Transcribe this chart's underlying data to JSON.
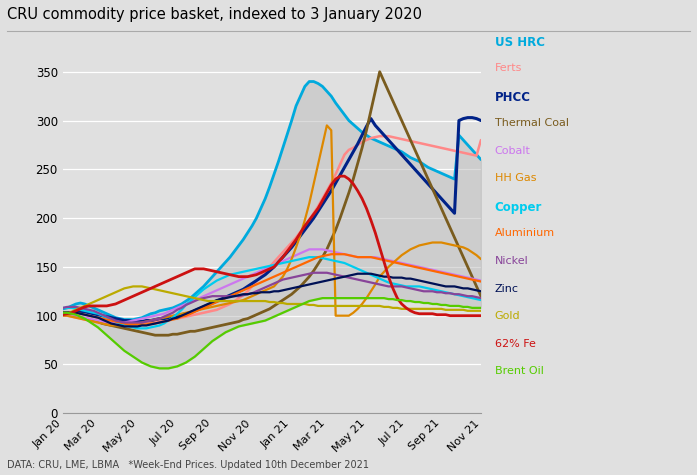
{
  "title": "CRU commodity price basket, indexed to 3 January 2020",
  "footnote": "DATA: CRU, LME, LBMA   *Week-End Prices. Updated 10th December 2021",
  "bg_color": "#e0e0e0",
  "ylim": [
    0,
    370
  ],
  "yticks": [
    0,
    50,
    100,
    150,
    200,
    250,
    300,
    350
  ],
  "x_labels": [
    "Jan 20",
    "Mar 20",
    "May 20",
    "Jul 20",
    "Sep 20",
    "Nov 20",
    "Jan 21",
    "Mar 21",
    "May 21",
    "Jul 21",
    "Sep 21",
    "Nov 21"
  ],
  "x_label_indices": [
    0,
    8,
    17,
    26,
    34,
    43,
    52,
    60,
    69,
    78,
    86,
    95
  ],
  "bold_entries": [
    "US HRC",
    "PHCC",
    "Copper"
  ],
  "series": {
    "US HRC": {
      "color": "#00aadd",
      "lw": 2.0,
      "data": [
        107,
        108,
        110,
        112,
        113,
        112,
        110,
        108,
        106,
        104,
        102,
        100,
        98,
        97,
        96,
        96,
        96,
        97,
        98,
        100,
        102,
        103,
        105,
        106,
        107,
        108,
        110,
        112,
        115,
        118,
        122,
        126,
        130,
        135,
        140,
        145,
        150,
        155,
        160,
        166,
        172,
        178,
        185,
        192,
        200,
        210,
        220,
        232,
        245,
        258,
        272,
        286,
        300,
        315,
        325,
        335,
        340,
        340,
        338,
        335,
        330,
        325,
        318,
        312,
        306,
        300,
        296,
        292,
        288,
        285,
        282,
        280,
        278,
        276,
        274,
        272,
        270,
        268,
        265,
        262,
        260,
        258,
        255,
        252,
        250,
        248,
        246,
        244,
        242,
        240,
        285,
        280,
        275,
        270,
        265,
        260
      ]
    },
    "Ferts": {
      "color": "#ff8888",
      "lw": 1.8,
      "data": [
        100,
        100,
        99,
        98,
        97,
        96,
        95,
        94,
        93,
        92,
        91,
        90,
        90,
        90,
        90,
        91,
        92,
        92,
        93,
        93,
        94,
        94,
        95,
        95,
        96,
        97,
        97,
        98,
        99,
        100,
        101,
        102,
        103,
        104,
        105,
        106,
        108,
        110,
        112,
        115,
        118,
        121,
        125,
        130,
        135,
        140,
        145,
        150,
        155,
        160,
        165,
        170,
        175,
        180,
        186,
        192,
        198,
        205,
        212,
        220,
        228,
        236,
        245,
        255,
        265,
        270,
        272,
        275,
        278,
        280,
        282,
        283,
        284,
        284,
        284,
        283,
        282,
        281,
        280,
        279,
        278,
        277,
        276,
        275,
        274,
        273,
        272,
        271,
        270,
        269,
        268,
        267,
        266,
        265,
        264,
        280
      ]
    },
    "PHCC": {
      "color": "#002288",
      "lw": 2.2,
      "data": [
        103,
        103,
        103,
        104,
        104,
        104,
        103,
        102,
        101,
        100,
        99,
        98,
        97,
        96,
        95,
        95,
        94,
        94,
        94,
        95,
        95,
        96,
        97,
        97,
        98,
        99,
        100,
        101,
        102,
        103,
        105,
        107,
        109,
        111,
        113,
        115,
        117,
        119,
        121,
        123,
        125,
        127,
        130,
        133,
        136,
        139,
        142,
        146,
        150,
        155,
        160,
        165,
        170,
        176,
        182,
        188,
        194,
        200,
        207,
        214,
        221,
        228,
        236,
        244,
        252,
        260,
        268,
        276,
        285,
        294,
        302,
        295,
        290,
        285,
        280,
        275,
        270,
        265,
        260,
        255,
        250,
        245,
        240,
        235,
        230,
        225,
        220,
        215,
        210,
        205,
        300,
        302,
        303,
        303,
        302,
        300
      ]
    },
    "Thermal Coal": {
      "color": "#7a5c1e",
      "lw": 2.0,
      "data": [
        102,
        101,
        100,
        99,
        98,
        97,
        96,
        95,
        94,
        92,
        91,
        90,
        89,
        88,
        87,
        86,
        85,
        84,
        83,
        82,
        81,
        80,
        80,
        80,
        80,
        81,
        81,
        82,
        83,
        84,
        84,
        85,
        86,
        87,
        88,
        89,
        90,
        91,
        92,
        93,
        94,
        96,
        97,
        99,
        101,
        103,
        105,
        107,
        110,
        113,
        116,
        119,
        122,
        126,
        130,
        135,
        140,
        146,
        153,
        160,
        168,
        178,
        188,
        200,
        213,
        226,
        240,
        256,
        272,
        290,
        310,
        330,
        350,
        340,
        330,
        320,
        310,
        300,
        290,
        280,
        270,
        260,
        250,
        240,
        230,
        220,
        210,
        200,
        190,
        180,
        170,
        160,
        150,
        140,
        130,
        120
      ]
    },
    "Cobalt": {
      "color": "#cc77ee",
      "lw": 1.6,
      "data": [
        100,
        100,
        100,
        100,
        99,
        98,
        97,
        96,
        95,
        94,
        93,
        93,
        93,
        93,
        93,
        94,
        95,
        96,
        97,
        98,
        99,
        100,
        101,
        102,
        104,
        106,
        108,
        110,
        112,
        114,
        116,
        118,
        120,
        122,
        124,
        126,
        128,
        130,
        132,
        134,
        136,
        138,
        140,
        142,
        144,
        146,
        148,
        150,
        152,
        154,
        156,
        158,
        160,
        162,
        164,
        166,
        168,
        168,
        168,
        168,
        167,
        166,
        165,
        164,
        163,
        162,
        161,
        160,
        160,
        160,
        160,
        160,
        159,
        158,
        157,
        156,
        155,
        154,
        153,
        152,
        151,
        150,
        149,
        148,
        147,
        146,
        145,
        144,
        143,
        142,
        141,
        140,
        139,
        138,
        137,
        136
      ]
    },
    "HH Gas": {
      "color": "#dd8800",
      "lw": 1.6,
      "data": [
        100,
        100,
        99,
        98,
        97,
        96,
        95,
        94,
        93,
        92,
        91,
        90,
        90,
        90,
        90,
        91,
        92,
        92,
        93,
        94,
        95,
        96,
        97,
        98,
        99,
        100,
        101,
        102,
        103,
        104,
        105,
        106,
        107,
        108,
        109,
        110,
        111,
        112,
        113,
        114,
        115,
        116,
        118,
        120,
        122,
        124,
        126,
        128,
        130,
        135,
        140,
        148,
        158,
        170,
        183,
        198,
        215,
        235,
        255,
        275,
        295,
        290,
        100,
        100,
        100,
        100,
        103,
        107,
        112,
        118,
        125,
        132,
        140,
        145,
        150,
        154,
        158,
        162,
        165,
        168,
        170,
        172,
        173,
        174,
        175,
        175,
        175,
        174,
        173,
        172,
        171,
        170,
        168,
        165,
        162,
        158
      ]
    },
    "Copper": {
      "color": "#00ccee",
      "lw": 1.6,
      "data": [
        108,
        108,
        108,
        107,
        106,
        105,
        104,
        103,
        102,
        100,
        98,
        96,
        94,
        92,
        90,
        89,
        88,
        87,
        87,
        87,
        88,
        89,
        90,
        92,
        95,
        98,
        102,
        106,
        111,
        115,
        119,
        123,
        127,
        130,
        133,
        136,
        138,
        140,
        142,
        143,
        144,
        145,
        146,
        147,
        148,
        149,
        150,
        151,
        152,
        153,
        154,
        155,
        156,
        157,
        158,
        159,
        160,
        160,
        160,
        159,
        158,
        157,
        156,
        155,
        154,
        152,
        150,
        148,
        146,
        144,
        142,
        140,
        138,
        136,
        134,
        133,
        132,
        131,
        130,
        130,
        130,
        130,
        129,
        128,
        127,
        126,
        125,
        124,
        123,
        122,
        121,
        120,
        119,
        118,
        117,
        116
      ]
    },
    "Aluminium": {
      "color": "#ff6600",
      "lw": 1.6,
      "data": [
        103,
        103,
        103,
        103,
        102,
        101,
        100,
        99,
        98,
        97,
        96,
        95,
        94,
        93,
        92,
        91,
        91,
        91,
        91,
        91,
        92,
        92,
        93,
        94,
        95,
        96,
        97,
        99,
        100,
        102,
        104,
        106,
        108,
        110,
        112,
        114,
        116,
        118,
        120,
        122,
        124,
        126,
        128,
        130,
        132,
        134,
        136,
        138,
        140,
        142,
        144,
        146,
        148,
        150,
        152,
        154,
        156,
        158,
        160,
        161,
        162,
        163,
        163,
        163,
        163,
        162,
        161,
        160,
        160,
        160,
        160,
        159,
        158,
        157,
        156,
        155,
        154,
        153,
        152,
        151,
        150,
        149,
        148,
        147,
        146,
        145,
        144,
        143,
        142,
        141,
        140,
        139,
        138,
        137,
        136,
        135
      ]
    },
    "Nickel": {
      "color": "#884499",
      "lw": 1.6,
      "data": [
        108,
        109,
        109,
        109,
        108,
        107,
        106,
        105,
        103,
        101,
        99,
        97,
        95,
        94,
        93,
        93,
        93,
        93,
        93,
        94,
        95,
        96,
        97,
        99,
        101,
        103,
        106,
        108,
        111,
        113,
        115,
        117,
        118,
        119,
        120,
        120,
        120,
        120,
        120,
        120,
        120,
        121,
        122,
        123,
        125,
        127,
        129,
        131,
        133,
        135,
        137,
        138,
        139,
        140,
        141,
        142,
        143,
        144,
        144,
        144,
        144,
        143,
        142,
        141,
        140,
        139,
        138,
        137,
        136,
        135,
        134,
        133,
        132,
        131,
        130,
        130,
        130,
        130,
        129,
        128,
        127,
        126,
        125,
        125,
        125,
        124,
        124,
        123,
        123,
        122,
        122,
        121,
        120,
        120,
        119,
        118
      ]
    },
    "Zinc": {
      "color": "#001155",
      "lw": 1.6,
      "data": [
        103,
        103,
        103,
        103,
        102,
        101,
        100,
        99,
        98,
        96,
        94,
        92,
        91,
        90,
        89,
        89,
        89,
        89,
        90,
        90,
        91,
        92,
        93,
        94,
        95,
        97,
        98,
        100,
        102,
        104,
        106,
        108,
        110,
        112,
        114,
        116,
        117,
        118,
        119,
        120,
        121,
        122,
        122,
        123,
        123,
        124,
        124,
        124,
        125,
        125,
        126,
        127,
        128,
        129,
        130,
        131,
        132,
        133,
        134,
        135,
        136,
        137,
        138,
        139,
        140,
        141,
        142,
        143,
        143,
        143,
        143,
        142,
        141,
        140,
        140,
        139,
        139,
        139,
        138,
        138,
        137,
        136,
        135,
        134,
        133,
        132,
        131,
        130,
        130,
        130,
        129,
        128,
        128,
        127,
        126,
        125
      ]
    },
    "Gold": {
      "color": "#bbaa00",
      "lw": 1.6,
      "data": [
        101,
        102,
        104,
        106,
        108,
        110,
        112,
        114,
        116,
        118,
        120,
        122,
        124,
        126,
        128,
        129,
        130,
        130,
        130,
        129,
        128,
        127,
        126,
        125,
        124,
        123,
        122,
        121,
        120,
        119,
        118,
        117,
        116,
        115,
        115,
        115,
        115,
        115,
        115,
        115,
        115,
        115,
        115,
        115,
        115,
        115,
        115,
        114,
        114,
        113,
        113,
        112,
        112,
        112,
        112,
        112,
        111,
        111,
        110,
        110,
        110,
        110,
        110,
        110,
        110,
        110,
        110,
        110,
        110,
        110,
        110,
        110,
        110,
        109,
        109,
        108,
        108,
        107,
        107,
        107,
        107,
        107,
        107,
        107,
        107,
        107,
        107,
        106,
        106,
        106,
        106,
        106,
        105,
        105,
        105,
        105
      ]
    },
    "62% Fe": {
      "color": "#cc1111",
      "lw": 2.0,
      "data": [
        101,
        102,
        103,
        105,
        107,
        109,
        110,
        110,
        110,
        110,
        110,
        111,
        112,
        114,
        116,
        118,
        120,
        122,
        124,
        126,
        128,
        130,
        132,
        134,
        136,
        138,
        140,
        142,
        144,
        146,
        148,
        148,
        148,
        147,
        146,
        145,
        144,
        143,
        142,
        141,
        140,
        140,
        140,
        141,
        142,
        144,
        146,
        148,
        150,
        155,
        160,
        166,
        172,
        178,
        185,
        192,
        198,
        204,
        210,
        218,
        226,
        234,
        240,
        243,
        243,
        240,
        235,
        228,
        220,
        210,
        198,
        185,
        170,
        155,
        140,
        128,
        118,
        112,
        108,
        105,
        103,
        102,
        102,
        102,
        102,
        101,
        101,
        101,
        100,
        100,
        100,
        100,
        100,
        100,
        100,
        100
      ]
    },
    "Brent Oil": {
      "color": "#55cc00",
      "lw": 1.6,
      "data": [
        103,
        103,
        102,
        101,
        99,
        97,
        94,
        91,
        88,
        84,
        80,
        76,
        72,
        68,
        64,
        61,
        58,
        55,
        52,
        50,
        48,
        47,
        46,
        46,
        46,
        47,
        48,
        50,
        52,
        55,
        58,
        62,
        66,
        70,
        74,
        77,
        80,
        83,
        85,
        87,
        89,
        90,
        91,
        92,
        93,
        94,
        95,
        97,
        99,
        101,
        103,
        105,
        107,
        109,
        111,
        113,
        115,
        116,
        117,
        118,
        118,
        118,
        118,
        118,
        118,
        118,
        118,
        118,
        118,
        118,
        118,
        118,
        118,
        118,
        117,
        117,
        116,
        116,
        115,
        115,
        114,
        114,
        113,
        113,
        112,
        112,
        111,
        111,
        110,
        110,
        110,
        109,
        109,
        108,
        108,
        108
      ]
    }
  }
}
